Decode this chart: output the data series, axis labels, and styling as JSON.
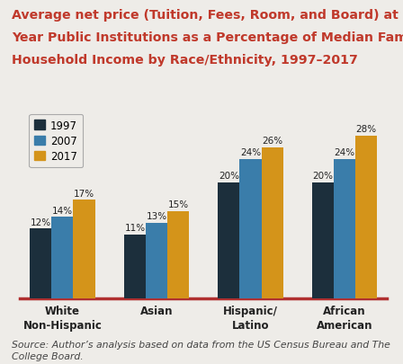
{
  "title_line1": "Average net price (Tuition, Fees, Room, and Board) at Four-",
  "title_line2": "Year Public Institutions as a Percentage of Median Family",
  "title_line3": "Household Income by Race/Ethnicity, 1997–2017",
  "title_color": "#c0392b",
  "categories": [
    "White\nNon-Hispanic",
    "Asian",
    "Hispanic/\nLatino",
    "African\nAmerican"
  ],
  "series": {
    "1997": [
      12,
      11,
      20,
      20
    ],
    "2007": [
      14,
      13,
      24,
      24
    ],
    "2017": [
      17,
      15,
      26,
      28
    ]
  },
  "colors": {
    "1997": "#1c2f3c",
    "2007": "#3a7daa",
    "2017": "#d4941a"
  },
  "bar_width": 0.23,
  "ylim": [
    0,
    33
  ],
  "source_text": "Source: Author’s analysis based on data from the US Census Bureau and The\nCollege Board.",
  "legend_labels": [
    "1997",
    "2007",
    "2017"
  ],
  "bg_color": "#eeece8",
  "chart_bg_color": "#eeece8",
  "axis_line_color": "#b03030",
  "value_label_fontsize": 7.5,
  "title_fontsize": 10.2,
  "source_fontsize": 7.8,
  "tick_fontsize": 8.5
}
